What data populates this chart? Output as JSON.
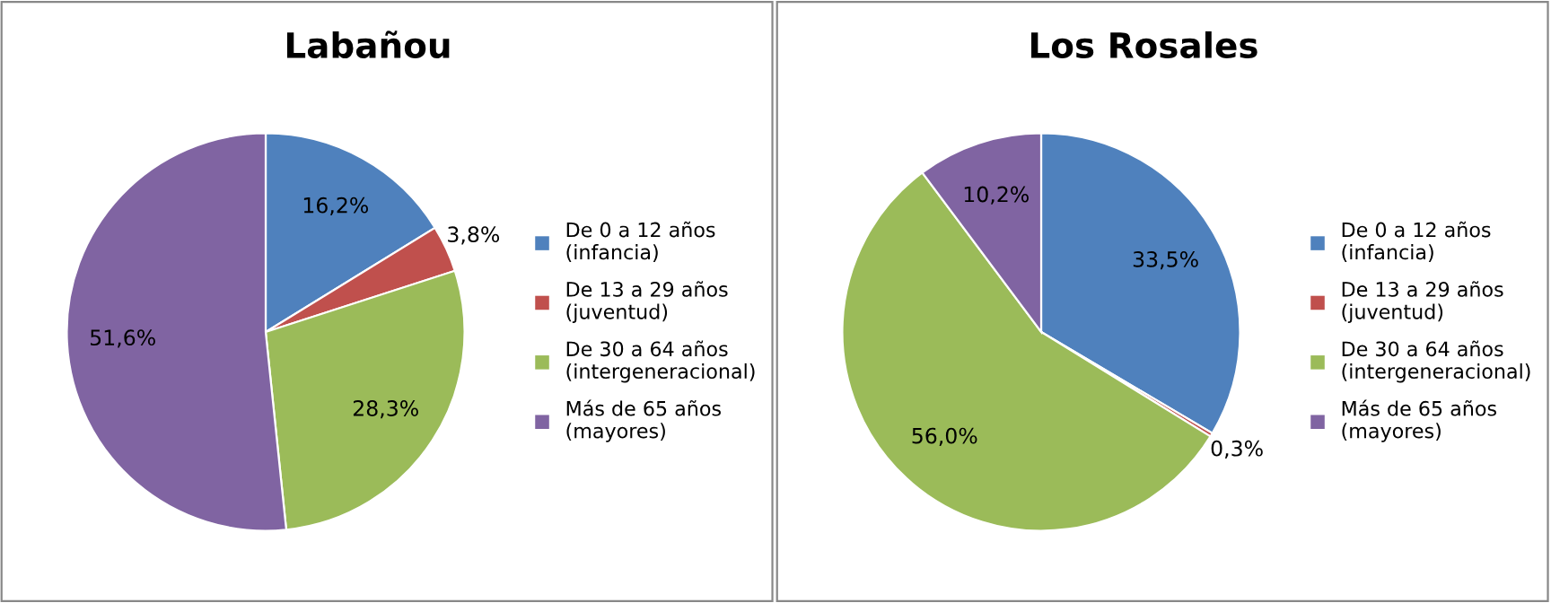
{
  "chart_data": [
    {
      "type": "pie",
      "title": "Labañou",
      "categories": [
        "De 0 a 12 años\n(infancia)",
        "De 13 a 29 años\n(juventud)",
        "De 30 a 64 años\n(intergeneracional)",
        "Más de 65 años\n(mayores)"
      ],
      "values": [
        16.2,
        3.8,
        28.3,
        51.6
      ],
      "value_labels": [
        "16,2%",
        "3,8%",
        "28,3%",
        "51,6%"
      ],
      "colors": [
        "#4f81bd",
        "#c0504d",
        "#9bbb59",
        "#8064a2"
      ],
      "legend": "right"
    },
    {
      "type": "pie",
      "title": "Los Rosales",
      "categories": [
        "De 0 a 12 años\n(infancia)",
        "De 13 a 29 años\n(juventud)",
        "De 30 a 64 años\n(intergeneracional)",
        "Más de 65 años\n(mayores)"
      ],
      "values": [
        33.5,
        0.3,
        56.0,
        10.2
      ],
      "value_labels": [
        "33,5%",
        "0,3%",
        "56,0%",
        "10,2%"
      ],
      "colors": [
        "#4f81bd",
        "#c0504d",
        "#9bbb59",
        "#8064a2"
      ],
      "legend": "right"
    }
  ]
}
